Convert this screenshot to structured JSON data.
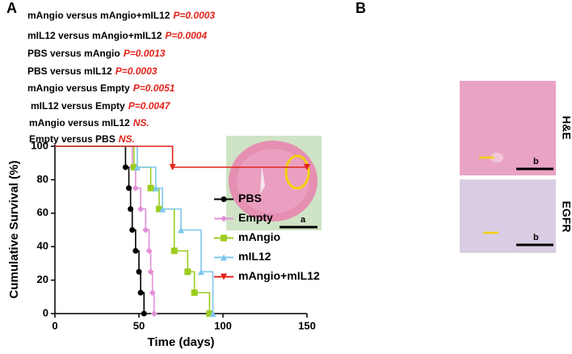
{
  "panel_labels": [
    "A",
    "B"
  ],
  "chart_data": {
    "type": "step",
    "annotations": [
      {
        "label": "mAngio versus mAngio+mIL12",
        "p": "P=0.0003"
      },
      {
        "label": "mIL12 versus mAngio+mIL12",
        "p": "P=0.0004"
      },
      {
        "label": "PBS versus mAngio",
        "p": "P=0.0013"
      },
      {
        "label": "PBS versus mIL12",
        "p": "P=0.0003"
      },
      {
        "label": "mAngio versus Empty",
        "p": "P=0.0051"
      },
      {
        "label": "mIL12 versus Empty",
        "p": "P=0.0047"
      },
      {
        "label": "mAngio versus mIL12",
        "p": "NS."
      },
      {
        "label": "Empty versus PBS",
        "p": "NS."
      }
    ],
    "xlabel": "Time (days)",
    "ylabel": "Cumulative Survival (%)",
    "xlim": [
      0,
      150
    ],
    "xticks": [
      0,
      50,
      100,
      150
    ],
    "ylim": [
      0,
      100
    ],
    "yticks": [
      0,
      20,
      40,
      60,
      80,
      100
    ],
    "legend": "center right",
    "series": [
      {
        "name": "PBS",
        "color": "#000000",
        "marker": "circle",
        "x": [
          0,
          42,
          44,
          45,
          46,
          48,
          50,
          51,
          53
        ],
        "values": [
          100,
          87.5,
          75,
          62.5,
          50,
          37.5,
          25,
          12.5,
          0
        ]
      },
      {
        "name": "Empty",
        "color": "#e38fd6",
        "marker": "diamond",
        "x": [
          0,
          46,
          48,
          51,
          54,
          56,
          57,
          58,
          59
        ],
        "values": [
          100,
          87.5,
          75,
          62.5,
          50,
          37.5,
          25,
          12.5,
          0
        ]
      },
      {
        "name": "mAngio",
        "color": "#9acd1e",
        "marker": "square",
        "x": [
          0,
          47,
          57,
          62,
          71,
          79,
          83,
          92
        ],
        "values": [
          100,
          87.5,
          75,
          62.5,
          37.5,
          25,
          12.5,
          0
        ]
      },
      {
        "name": "mIL12",
        "color": "#7ec8ec",
        "marker": "triangle-up",
        "x": [
          0,
          49,
          60,
          64,
          75,
          87,
          94
        ],
        "values": [
          100,
          87.5,
          75,
          62.5,
          50,
          25,
          0
        ]
      },
      {
        "name": "mAngio+mIL12",
        "color": "#e2231a",
        "marker": "triangle-down",
        "x": [
          0,
          70,
          150
        ],
        "values": [
          100,
          87.5,
          87.5
        ]
      }
    ]
  },
  "panel_b": {
    "scale_labels": [
      "a",
      "b",
      "b"
    ],
    "row_labels": [
      "H&E",
      "EGFR"
    ]
  }
}
